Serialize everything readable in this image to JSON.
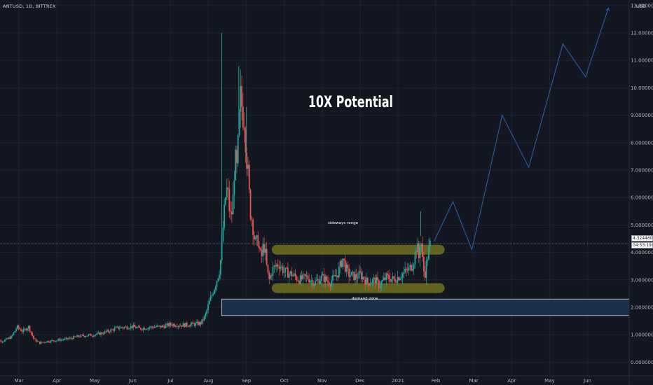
{
  "header": {
    "symbol_line": "ANTUSD, 1D, BITTREX",
    "currency": "USD"
  },
  "annotations": {
    "headline": "10X Potential",
    "sideways_label": "sideways range",
    "demand_label": "demand zone"
  },
  "price_badge": {
    "value": "4.32446001",
    "timer": "04:53:19"
  },
  "colors": {
    "background": "#131722",
    "grid": "#1f2330",
    "up_candle": "#26a69a",
    "down_candle": "#ef5350",
    "projection": "#2a5d9f",
    "range_highlight": "#6b6a1f",
    "demand_fill": "#1c2f4d",
    "demand_border": "#d1d4dc"
  },
  "chart_data": {
    "type": "candlestick",
    "symbol": "ANTUSD",
    "interval": "1D",
    "exchange": "BITTREX",
    "y_axis": {
      "ticks": [
        "0.00000000",
        "1.00000000",
        "2.00000000",
        "3.00000000",
        "4.00000000",
        "5.00000000",
        "6.00000000",
        "7.00000000",
        "8.00000000",
        "9.00000000",
        "10.00000000",
        "11.00000000",
        "12.00000000",
        "13.00000000"
      ],
      "tick_values": [
        0,
        1,
        2,
        3,
        4,
        5,
        6,
        7,
        8,
        9,
        10,
        11,
        12,
        13
      ],
      "range": [
        -0.5,
        13.2
      ]
    },
    "x_axis": {
      "labels": [
        "Mar",
        "Apr",
        "May",
        "Jun",
        "Jul",
        "Aug",
        "Sep",
        "Oct",
        "Nov",
        "Dec",
        "2021",
        "Feb",
        "Mar",
        "Apr",
        "May",
        "Jun"
      ],
      "label_months": [
        0,
        1,
        2,
        3,
        4,
        5,
        6,
        7,
        8,
        9,
        10,
        11,
        12,
        13,
        14,
        15
      ],
      "range_months": [
        -0.5,
        16.1
      ]
    },
    "price_path": [
      [
        -0.7,
        0.8
      ],
      [
        -0.4,
        0.78
      ],
      [
        -0.2,
        0.92
      ],
      [
        -0.05,
        1.28
      ],
      [
        0.1,
        1.12
      ],
      [
        0.25,
        1.3
      ],
      [
        0.4,
        0.82
      ],
      [
        0.55,
        0.7
      ],
      [
        0.7,
        0.75
      ],
      [
        1.0,
        0.8
      ],
      [
        1.3,
        0.85
      ],
      [
        1.6,
        0.95
      ],
      [
        2.0,
        1.0
      ],
      [
        2.3,
        1.1
      ],
      [
        2.6,
        1.25
      ],
      [
        3.0,
        1.3
      ],
      [
        3.2,
        1.22
      ],
      [
        3.5,
        1.28
      ],
      [
        3.8,
        1.3
      ],
      [
        4.0,
        1.38
      ],
      [
        4.3,
        1.35
      ],
      [
        4.6,
        1.38
      ],
      [
        4.8,
        1.42
      ],
      [
        4.92,
        1.7
      ],
      [
        5.0,
        2.1
      ],
      [
        5.1,
        2.5
      ],
      [
        5.2,
        2.9
      ],
      [
        5.3,
        3.4
      ],
      [
        5.35,
        4.2
      ],
      [
        5.4,
        5.2
      ],
      [
        5.45,
        6.0
      ],
      [
        5.5,
        6.4
      ],
      [
        5.55,
        5.6
      ],
      [
        5.6,
        5.2
      ],
      [
        5.65,
        6.0
      ],
      [
        5.7,
        7.5
      ],
      [
        5.75,
        7.0
      ],
      [
        5.8,
        8.5
      ],
      [
        5.85,
        9.8
      ],
      [
        5.9,
        9.0
      ],
      [
        5.95,
        8.8
      ],
      [
        6.0,
        7.5
      ],
      [
        6.05,
        6.8
      ],
      [
        6.1,
        5.5
      ],
      [
        6.15,
        5.2
      ],
      [
        6.2,
        4.6
      ],
      [
        6.25,
        4.3
      ],
      [
        6.3,
        4.5
      ],
      [
        6.35,
        4.0
      ],
      [
        6.4,
        3.8
      ],
      [
        6.45,
        4.3
      ],
      [
        6.5,
        4.0
      ],
      [
        6.55,
        3.3
      ],
      [
        6.6,
        3.0
      ],
      [
        6.7,
        3.4
      ],
      [
        6.85,
        3.6
      ],
      [
        7.0,
        3.3
      ],
      [
        7.2,
        3.2
      ],
      [
        7.4,
        3.0
      ],
      [
        7.6,
        3.1
      ],
      [
        7.8,
        2.9
      ],
      [
        8.0,
        3.1
      ],
      [
        8.2,
        2.9
      ],
      [
        8.4,
        3.2
      ],
      [
        8.55,
        3.8
      ],
      [
        8.6,
        3.5
      ],
      [
        8.7,
        3.2
      ],
      [
        8.9,
        3.1
      ],
      [
        9.0,
        3.2
      ],
      [
        9.2,
        2.9
      ],
      [
        9.4,
        3.0
      ],
      [
        9.5,
        2.8
      ],
      [
        9.7,
        3.1
      ],
      [
        9.9,
        3.0
      ],
      [
        10.1,
        3.2
      ],
      [
        10.3,
        3.4
      ],
      [
        10.4,
        3.6
      ],
      [
        10.5,
        4.3
      ],
      [
        10.55,
        3.8
      ],
      [
        10.6,
        4.6
      ],
      [
        10.65,
        3.7
      ],
      [
        10.7,
        3.1
      ],
      [
        10.75,
        3.6
      ],
      [
        10.8,
        4.0
      ],
      [
        10.85,
        4.32
      ]
    ],
    "price_spikes": [
      [
        5.35,
        12.0
      ],
      [
        5.8,
        10.8
      ],
      [
        10.6,
        5.5
      ],
      [
        6.0,
        9.3
      ]
    ],
    "projection": [
      [
        10.95,
        4.4
      ],
      [
        11.45,
        5.85
      ],
      [
        11.95,
        4.1
      ],
      [
        12.75,
        9.0
      ],
      [
        13.45,
        7.1
      ],
      [
        14.35,
        11.6
      ],
      [
        14.95,
        10.4
      ],
      [
        15.55,
        12.9
      ]
    ],
    "current_price": 4.32446001,
    "zones": {
      "sideways_range": {
        "top": 4.1,
        "bottom": 2.7,
        "start_month": 6.8,
        "end_month": 11.1
      },
      "demand_zone": {
        "top": 2.3,
        "bottom": 1.7,
        "start_month": 5.35,
        "end_month": 16.1
      }
    }
  }
}
